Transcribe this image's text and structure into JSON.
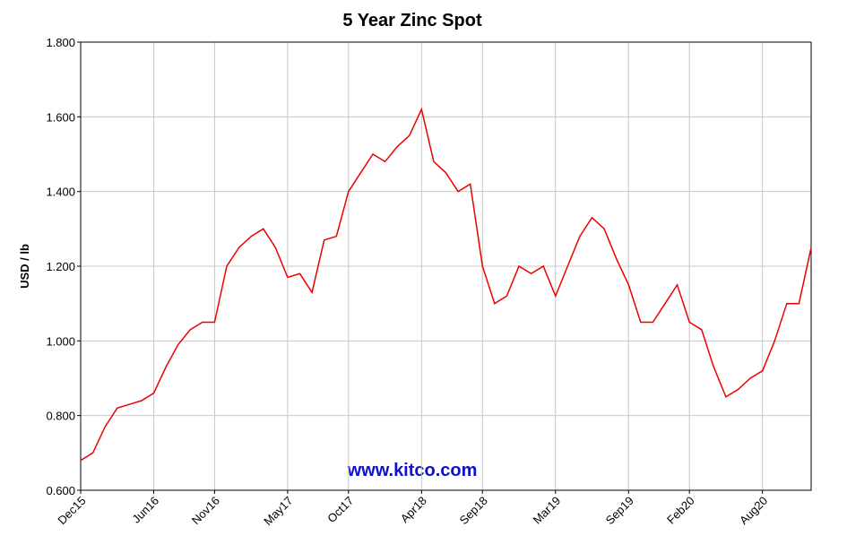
{
  "chart_data": {
    "type": "line",
    "title": "5 Year Zinc Spot",
    "y_label": "USD / lb",
    "watermark": "www.kitco.com",
    "categories": [
      "Dec15",
      null,
      null,
      null,
      null,
      null,
      "Jun16",
      null,
      null,
      null,
      null,
      "Nov16",
      null,
      null,
      null,
      null,
      null,
      "May17",
      null,
      null,
      null,
      null,
      "Oct17",
      null,
      null,
      null,
      null,
      null,
      "Apr18",
      null,
      null,
      null,
      null,
      "Sep18",
      null,
      null,
      null,
      null,
      null,
      "Mar19",
      null,
      null,
      null,
      null,
      null,
      "Sep19",
      null,
      null,
      null,
      null,
      "Feb20",
      null,
      null,
      null,
      null,
      null,
      "Aug20",
      null,
      null,
      null,
      null
    ],
    "series": [
      {
        "name": "Zinc",
        "color": "#ee0000",
        "values": [
          0.68,
          0.7,
          0.77,
          0.82,
          0.83,
          0.84,
          0.86,
          0.93,
          0.99,
          1.03,
          1.05,
          1.05,
          1.2,
          1.25,
          1.28,
          1.3,
          1.25,
          1.17,
          1.18,
          1.13,
          1.27,
          1.28,
          1.4,
          1.45,
          1.5,
          1.48,
          1.52,
          1.55,
          1.62,
          1.48,
          1.45,
          1.4,
          1.42,
          1.2,
          1.1,
          1.12,
          1.2,
          1.18,
          1.2,
          1.12,
          1.2,
          1.28,
          1.33,
          1.3,
          1.22,
          1.15,
          1.05,
          1.05,
          1.1,
          1.15,
          1.05,
          1.03,
          0.93,
          0.85,
          0.87,
          0.9,
          0.92,
          1.0,
          1.1,
          1.1,
          1.25
        ]
      }
    ],
    "ylim": [
      0.6,
      1.8
    ],
    "yticks": [
      {
        "value": 0.6,
        "label": "0.600"
      },
      {
        "value": 0.8,
        "label": "0.800"
      },
      {
        "value": 1.0,
        "label": "1.000"
      },
      {
        "value": 1.2,
        "label": "1.200"
      },
      {
        "value": 1.4,
        "label": "1.400"
      },
      {
        "value": 1.6,
        "label": "1.600"
      },
      {
        "value": 1.8,
        "label": "1.800"
      }
    ],
    "grid": true
  }
}
